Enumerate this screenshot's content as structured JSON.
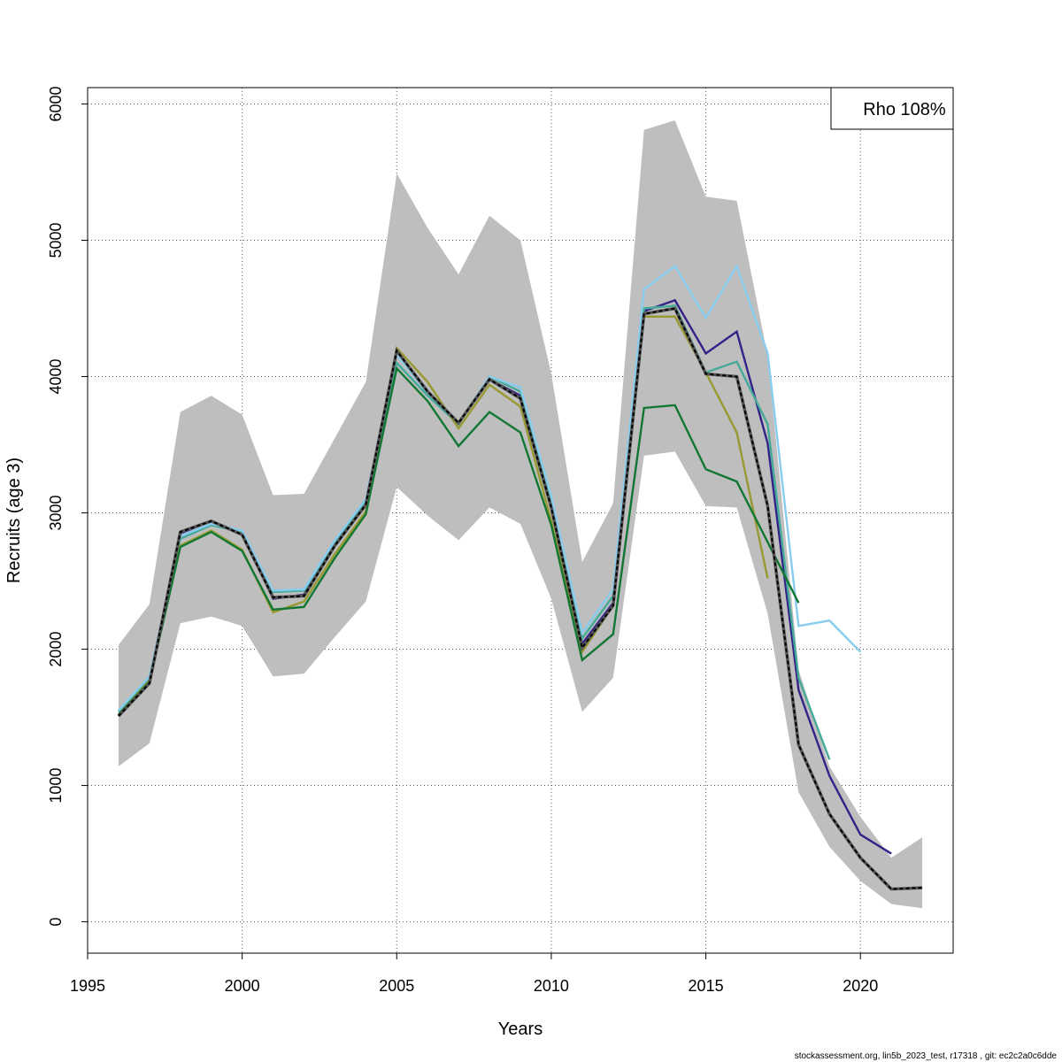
{
  "chart_data": {
    "type": "line",
    "xlabel": "Years",
    "ylabel": "Recruits (age 3)",
    "xlim": [
      1995,
      2023
    ],
    "ylim": [
      -230,
      6120
    ],
    "x_ticks": [
      1995,
      2000,
      2005,
      2010,
      2015,
      2020
    ],
    "y_ticks": [
      0,
      1000,
      2000,
      3000,
      4000,
      5000,
      6000
    ],
    "grid": true,
    "legend": {
      "position": "top-right",
      "text": "Rho 108%"
    },
    "confidence_band": {
      "color": "#bebebe",
      "x": [
        1996,
        1997,
        1998,
        1999,
        2000,
        2001,
        2002,
        2003,
        2004,
        2005,
        2006,
        2007,
        2008,
        2009,
        2010,
        2011,
        2012,
        2013,
        2014,
        2015,
        2016,
        2017,
        2018,
        2019,
        2020,
        2021,
        2022
      ],
      "lower": [
        1140,
        1310,
        2190,
        2240,
        2170,
        1800,
        1820,
        2090,
        2350,
        3190,
        2980,
        2800,
        3040,
        2920,
        2370,
        1540,
        1790,
        3420,
        3450,
        3050,
        3040,
        2260,
        950,
        550,
        300,
        130,
        100
      ],
      "upper": [
        2030,
        2330,
        3740,
        3860,
        3720,
        3130,
        3140,
        3550,
        3960,
        5490,
        5090,
        4750,
        5180,
        5000,
        4020,
        2640,
        3070,
        5810,
        5880,
        5320,
        5290,
        4150,
        1850,
        1140,
        770,
        470,
        620
      ]
    },
    "series": [
      {
        "color": "#000000",
        "dashed": true,
        "x": [
          1996,
          1997,
          1998,
          1999,
          2000,
          2001,
          2002,
          2003,
          2004,
          2005,
          2006,
          2007,
          2008,
          2009,
          2010,
          2011,
          2012,
          2013,
          2014,
          2015,
          2016,
          2017,
          2018,
          2019,
          2020,
          2021,
          2022
        ],
        "values": [
          1510,
          1750,
          2860,
          2940,
          2840,
          2380,
          2390,
          2760,
          3060,
          4190,
          3890,
          3660,
          3980,
          3840,
          3040,
          2010,
          2320,
          4460,
          4500,
          4020,
          4000,
          3050,
          1300,
          790,
          470,
          240,
          250
        ]
      },
      {
        "color": "#332288",
        "x": [
          1996,
          1997,
          1998,
          1999,
          2000,
          2001,
          2002,
          2003,
          2004,
          2005,
          2006,
          2007,
          2008,
          2009,
          2010,
          2011,
          2012,
          2013,
          2014,
          2015,
          2016,
          2017,
          2018,
          2019,
          2020,
          2021
        ],
        "values": [
          1510,
          1760,
          2850,
          2940,
          2850,
          2370,
          2400,
          2770,
          3060,
          4180,
          3880,
          3660,
          3980,
          3860,
          3040,
          2040,
          2340,
          4480,
          4560,
          4170,
          4330,
          3510,
          1700,
          1070,
          640,
          500
        ]
      },
      {
        "color": "#44AA99",
        "x": [
          1996,
          1997,
          1998,
          1999,
          2000,
          2001,
          2002,
          2003,
          2004,
          2005,
          2006,
          2007,
          2008,
          2009,
          2010,
          2011,
          2012,
          2013,
          2014,
          2015,
          2016,
          2017,
          2018,
          2019
        ],
        "values": [
          1540,
          1790,
          2810,
          2910,
          2860,
          2420,
          2430,
          2790,
          3090,
          4100,
          3860,
          3650,
          4000,
          3890,
          3100,
          2080,
          2390,
          4500,
          4520,
          4030,
          4110,
          3650,
          1790,
          1190
        ]
      },
      {
        "color": "#88CCEE",
        "x": [
          1996,
          1997,
          1998,
          1999,
          2000,
          2001,
          2002,
          2003,
          2004,
          2005,
          2006,
          2007,
          2008,
          2009,
          2010,
          2011,
          2012,
          2013,
          2014,
          2015,
          2016,
          2017,
          2018,
          2019,
          2020
        ],
        "values": [
          1550,
          1800,
          2830,
          2920,
          2870,
          2430,
          2440,
          2800,
          3100,
          4160,
          3880,
          3660,
          4000,
          3920,
          3120,
          2120,
          2440,
          4640,
          4810,
          4430,
          4810,
          4170,
          2170,
          2210,
          1980
        ]
      },
      {
        "color": "#999933",
        "x": [
          1996,
          1997,
          1998,
          1999,
          2000,
          2001,
          2002,
          2003,
          2004,
          2005,
          2006,
          2007,
          2008,
          2009,
          2010,
          2011,
          2012,
          2013,
          2014,
          2015,
          2016,
          2017
        ],
        "values": [
          1520,
          1770,
          2760,
          2870,
          2730,
          2270,
          2350,
          2700,
          3010,
          4210,
          3960,
          3620,
          3940,
          3780,
          2940,
          1980,
          2320,
          4440,
          4440,
          4030,
          3590,
          2520
        ]
      },
      {
        "color": "#117733",
        "x": [
          1996,
          1997,
          1998,
          1999,
          2000,
          2001,
          2002,
          2003,
          2004,
          2005,
          2006,
          2007,
          2008,
          2009,
          2010,
          2011,
          2012,
          2013,
          2014,
          2015,
          2016,
          2018
        ],
        "values": [
          1520,
          1760,
          2750,
          2860,
          2720,
          2290,
          2310,
          2670,
          2990,
          4060,
          3820,
          3490,
          3740,
          3590,
          2910,
          1920,
          2110,
          3770,
          3790,
          3320,
          3230,
          2340
        ]
      }
    ]
  },
  "footer": "stockassessment.org, lin5b_2023_test, r17318 , git: ec2c2a0c6dde"
}
